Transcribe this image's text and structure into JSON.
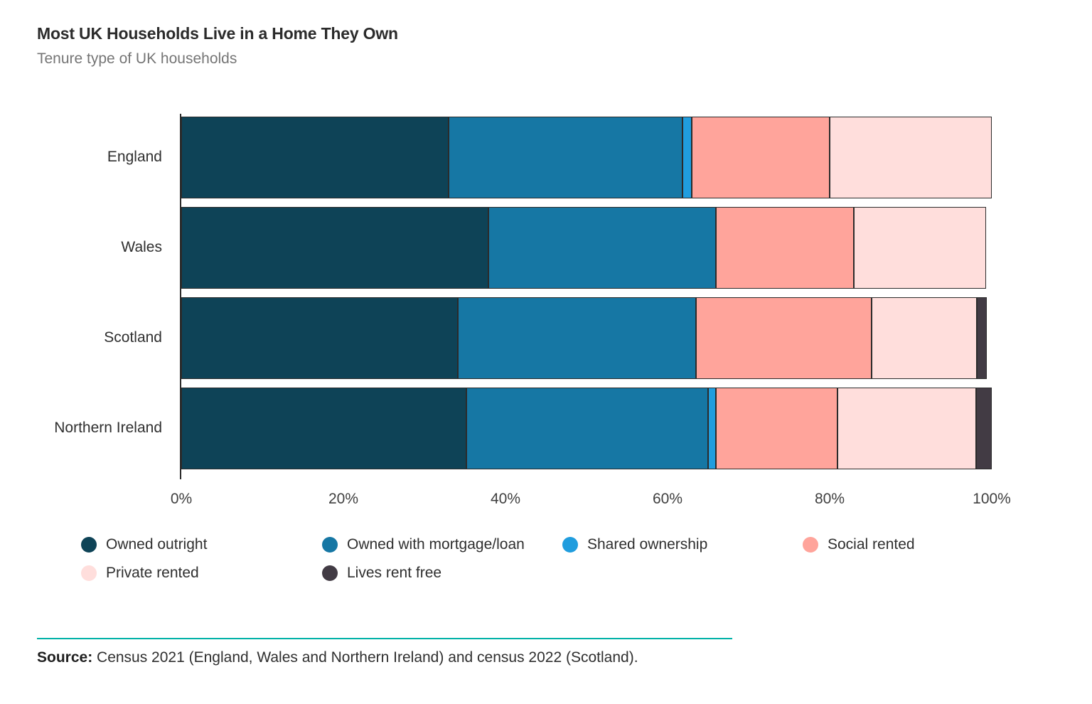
{
  "header": {
    "title": "Most UK Households Live in a Home They Own",
    "subtitle": "Tenure type of UK households"
  },
  "colors": {
    "owned_outright": "#0E4357",
    "owned_mortgage": "#1677A4",
    "shared_ownership": "#209DDE",
    "social_rented": "#FFA49B",
    "private_rented": "#FFDEDC",
    "rent_free": "#423B44",
    "segment_border": "#2B2B2B",
    "axis": "#2B2B2B",
    "rule_teal": "#00B1A7"
  },
  "chart_data": {
    "type": "bar",
    "orientation": "horizontal",
    "stacked": true,
    "title": "Most UK Households Live in a Home They Own",
    "subtitle": "Tenure type of UK households",
    "categories": [
      "England",
      "Wales",
      "Scotland",
      "Northern Ireland"
    ],
    "series": [
      {
        "name": "Owned outright",
        "color": "#0E4357",
        "values": [
          33.0,
          37.9,
          34.1,
          35.2
        ]
      },
      {
        "name": "Owned with mortgage/loan",
        "color": "#1677A4",
        "values": [
          28.8,
          28.1,
          29.4,
          29.8
        ]
      },
      {
        "name": "Shared ownership",
        "color": "#209DDE",
        "values": [
          1.2,
          0,
          0,
          1.0
        ]
      },
      {
        "name": "Social rented",
        "color": "#FFA49B",
        "values": [
          17.0,
          17.0,
          21.7,
          15.0
        ]
      },
      {
        "name": "Private rented",
        "color": "#FFDEDC",
        "values": [
          20.0,
          16.3,
          13.0,
          17.1
        ]
      },
      {
        "name": "Lives rent free",
        "color": "#423B44",
        "values": [
          0,
          0,
          1.2,
          1.9
        ]
      }
    ],
    "x_ticks": [
      "0%",
      "20%",
      "40%",
      "60%",
      "80%",
      "100%"
    ],
    "x_tick_values": [
      0,
      20,
      40,
      60,
      80,
      100
    ],
    "xlim": [
      0,
      100
    ],
    "xlabel": "",
    "ylabel": "",
    "grid": false,
    "legend_position": "bottom"
  },
  "footer": {
    "source_label": "Source:",
    "source_text": " Census 2021 (England, Wales and Northern Ireland) and census 2022 (Scotland)."
  }
}
